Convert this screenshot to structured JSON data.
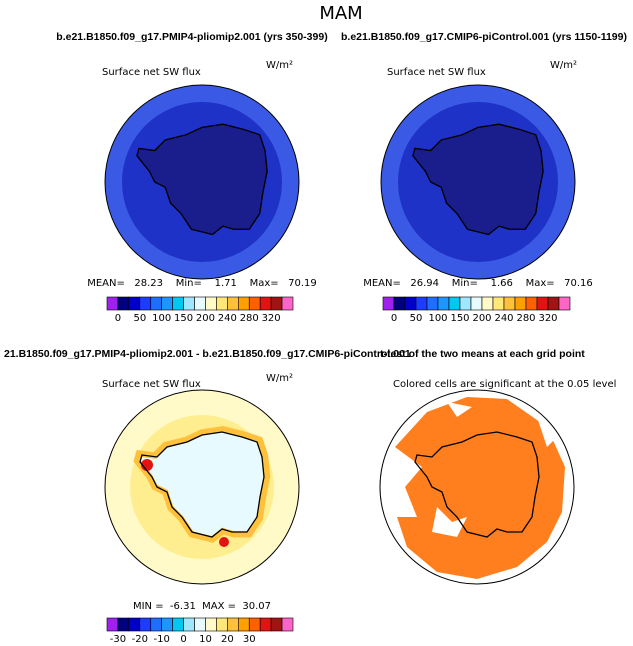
{
  "title": "MAM",
  "colorbar_colors": [
    "#a020f0",
    "#00007f",
    "#0000c8",
    "#1e3cff",
    "#1e6eff",
    "#1e96ff",
    "#00c8f0",
    "#a0e6ff",
    "#e6faff",
    "#fffac8",
    "#ffe878",
    "#ffc03c",
    "#ffa000",
    "#ff6000",
    "#e11414",
    "#a01414",
    "#ff64c8"
  ],
  "panels": [
    {
      "header": "b.e21.B1850.f09_g17.PMIP4-pliomip2.001 (yrs 350-399)",
      "subtitle": "Surface net SW flux",
      "units": "W/m²",
      "stats": "MEAN=   28.23    Min=    1.71    Max=   70.19",
      "colorbar_ticks": [
        "0",
        "50",
        "100",
        "150",
        "200",
        "240",
        "280",
        "320"
      ]
    },
    {
      "header": "b.e21.B1850.f09_g17.CMIP6-piControl.001 (yrs 1150-1199)",
      "subtitle": "Surface net SW flux",
      "units": "W/m²",
      "stats": "MEAN=   26.94    Min=    1.66    Max=   70.16",
      "colorbar_ticks": [
        "0",
        "50",
        "100",
        "150",
        "200",
        "240",
        "280",
        "320"
      ]
    },
    {
      "header": "21.B1850.f09_g17.PMIP4-pliomip2.001 - b.e21.B1850.f09_g17.CMIP6-piControl.001",
      "subtitle": "Surface net SW flux",
      "units": "W/m²",
      "stats": "MIN =  -6.31  MAX =  30.07",
      "colorbar_ticks": [
        "-30",
        "-20",
        "-10",
        "0",
        "10",
        "20",
        "30"
      ]
    },
    {
      "header": "t-test of the two means at each grid point",
      "subtitle": "Colored cells are significant at the 0.05 level"
    }
  ]
}
